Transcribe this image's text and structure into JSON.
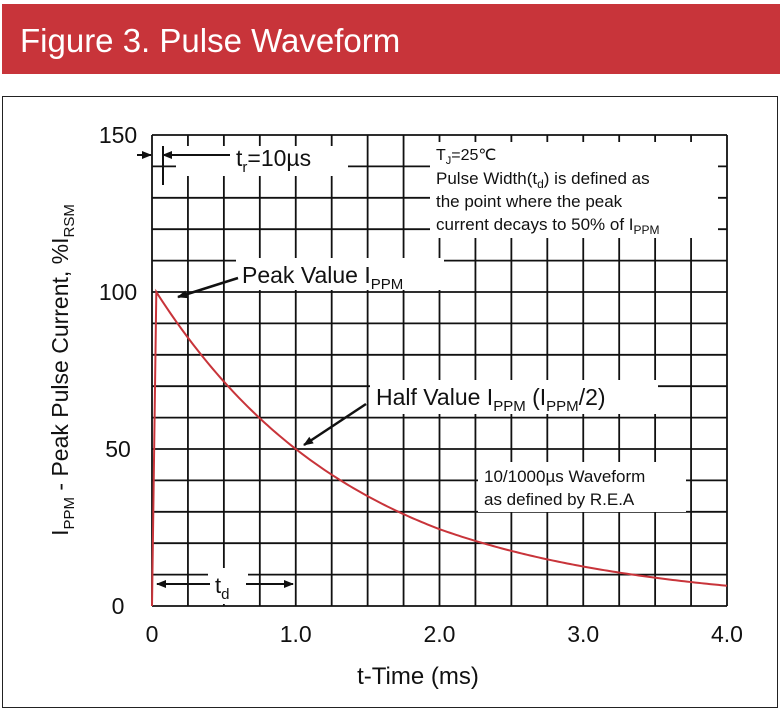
{
  "header": {
    "title": "Figure 3. Pulse Waveform"
  },
  "chart_data": {
    "type": "line",
    "title": "Figure 3. Pulse Waveform",
    "xlabel": "t-Time (ms)",
    "ylabel": {
      "main": "I",
      "sub1": "PPM",
      "mid": " - Peak Pulse Current, %I",
      "sub2": "RSM"
    },
    "xlim": [
      0,
      4.0
    ],
    "ylim": [
      0,
      150
    ],
    "x_ticks": [
      "0",
      "1.0",
      "2.0",
      "3.0",
      "4.0"
    ],
    "y_ticks": [
      "0",
      "50",
      "100",
      "150"
    ],
    "grid": true,
    "series": [
      {
        "name": "10/1000µs Waveform",
        "color": "#c8343a",
        "x": [
          0,
          0.03,
          0.5,
          1.0,
          1.5,
          2.0,
          2.5,
          3.0,
          3.5,
          4.0
        ],
        "values": [
          0,
          100,
          71,
          50,
          38,
          29,
          22,
          17,
          12,
          8
        ]
      }
    ],
    "annotations": {
      "rise_time": {
        "pre": "t",
        "sub": "r",
        "post": "=10µs"
      },
      "tj": {
        "pre": "T",
        "sub": "J",
        "post": "=25℃"
      },
      "pw_line1": {
        "pre": "Pulse Width(t",
        "sub": "d",
        "post": ") is defined as"
      },
      "pw_line2": "the point where the peak",
      "pw_line3": {
        "pre": "current decays to 50% of I",
        "sub": "PPM"
      },
      "peak": {
        "pre": "Peak Value I",
        "sub": "PPM"
      },
      "half": {
        "pre": "Half Value I",
        "sub1": "PPM",
        "mid": " (I",
        "sub2": "PPM",
        "post": "/2)"
      },
      "wave_line1": "10/1000µs Waveform",
      "wave_line2": "as defined by R.E.A",
      "td": {
        "pre": "t",
        "sub": "d"
      }
    }
  }
}
